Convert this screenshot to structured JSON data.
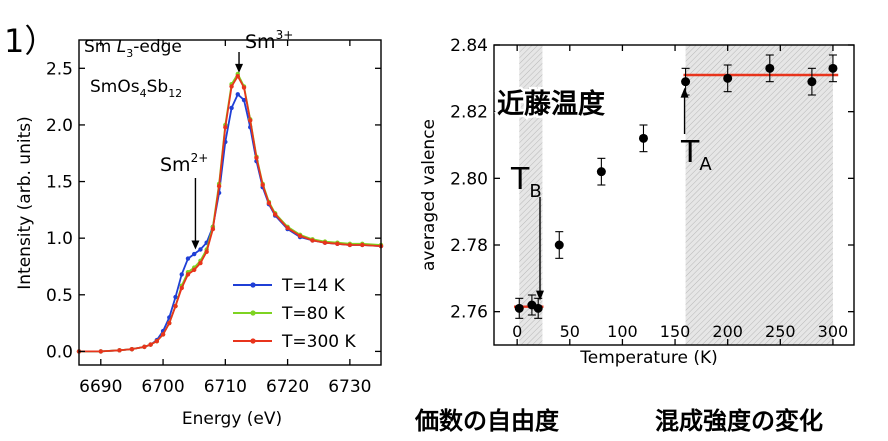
{
  "panel_number": "1）",
  "chart_data": [
    {
      "type": "line",
      "title": "Sm L3-edge",
      "title_parts": {
        "prefix": "Sm ",
        "L": "L",
        "sub": "3",
        "suffix": "-edge"
      },
      "sample": {
        "base": "SmOs",
        "s1": "4",
        "mid": "Sb",
        "s2": "12"
      },
      "xlabel": "Energy (eV)",
      "ylabel": "Intensity (arb. units)",
      "xlim": [
        6686.5,
        6735
      ],
      "ylim": [
        -0.12,
        2.75
      ],
      "xticks": [
        6690,
        6700,
        6710,
        6720,
        6730
      ],
      "yticks": [
        0.0,
        0.5,
        1.0,
        1.5,
        2.0,
        2.5
      ],
      "ytick_labels": [
        "0.0",
        "0.5",
        "1.0",
        "1.5",
        "2.0",
        "2.5"
      ],
      "annotations": [
        {
          "base": "Sm",
          "sup": "3+",
          "x": 6712.2,
          "y": 2.6,
          "arrow_to": 2.46
        },
        {
          "base": "Sm",
          "sup": "2+",
          "x": 6705.2,
          "y": 1.6,
          "arrow_to": 0.9
        }
      ],
      "series": [
        {
          "name": "T=14 K",
          "color": "#1f3fd6",
          "x": [
            6686.5,
            6690,
            6693,
            6695,
            6697,
            6698,
            6699,
            6700,
            6701,
            6702,
            6703,
            6704,
            6705,
            6706,
            6707,
            6708,
            6709,
            6710,
            6711,
            6712,
            6713,
            6714,
            6715,
            6716,
            6717,
            6718,
            6720,
            6722,
            6724,
            6726,
            6728,
            6730,
            6732,
            6735
          ],
          "y": [
            0.0,
            0.0,
            0.01,
            0.02,
            0.04,
            0.06,
            0.1,
            0.18,
            0.3,
            0.48,
            0.68,
            0.82,
            0.86,
            0.9,
            0.96,
            1.1,
            1.4,
            1.85,
            2.15,
            2.27,
            2.22,
            1.98,
            1.68,
            1.45,
            1.3,
            1.2,
            1.08,
            1.01,
            0.98,
            0.96,
            0.95,
            0.94,
            0.94,
            0.93
          ]
        },
        {
          "name": "T=80 K",
          "color": "#7ed321",
          "x": [
            6686.5,
            6690,
            6693,
            6695,
            6697,
            6698,
            6699,
            6700,
            6701,
            6702,
            6703,
            6704,
            6705,
            6706,
            6707,
            6708,
            6709,
            6710,
            6711,
            6712,
            6713,
            6714,
            6715,
            6716,
            6717,
            6718,
            6720,
            6722,
            6724,
            6726,
            6728,
            6730,
            6732,
            6735
          ],
          "y": [
            0.0,
            0.0,
            0.01,
            0.02,
            0.04,
            0.06,
            0.09,
            0.15,
            0.25,
            0.4,
            0.58,
            0.7,
            0.74,
            0.8,
            0.9,
            1.1,
            1.48,
            2.0,
            2.36,
            2.45,
            2.34,
            2.05,
            1.72,
            1.48,
            1.32,
            1.22,
            1.1,
            1.03,
            0.99,
            0.97,
            0.96,
            0.95,
            0.95,
            0.94
          ]
        },
        {
          "name": "T=300 K",
          "color": "#e8341c",
          "x": [
            6686.5,
            6690,
            6693,
            6695,
            6697,
            6698,
            6699,
            6700,
            6701,
            6702,
            6703,
            6704,
            6705,
            6706,
            6707,
            6708,
            6709,
            6710,
            6711,
            6712,
            6713,
            6714,
            6715,
            6716,
            6717,
            6718,
            6720,
            6722,
            6724,
            6726,
            6728,
            6730,
            6732,
            6735
          ],
          "y": [
            0.0,
            0.0,
            0.01,
            0.02,
            0.04,
            0.06,
            0.09,
            0.15,
            0.25,
            0.4,
            0.56,
            0.68,
            0.72,
            0.78,
            0.88,
            1.08,
            1.46,
            1.98,
            2.34,
            2.43,
            2.33,
            2.04,
            1.71,
            1.47,
            1.31,
            1.21,
            1.09,
            1.02,
            0.98,
            0.96,
            0.95,
            0.94,
            0.94,
            0.93
          ]
        }
      ]
    },
    {
      "type": "scatter",
      "xlabel": "Temperature (K)",
      "ylabel": "averaged valence",
      "xlim": [
        -22,
        320
      ],
      "ylim": [
        2.75,
        2.84
      ],
      "xticks": [
        0,
        50,
        100,
        150,
        200,
        250,
        300
      ],
      "yticks": [
        2.76,
        2.78,
        2.8,
        2.82,
        2.84
      ],
      "ytick_labels": [
        "2.76",
        "2.78",
        "2.80",
        "2.82",
        "2.84"
      ],
      "shaded_regions": [
        {
          "from": 2,
          "to": 24
        },
        {
          "from": 160,
          "to": 300
        }
      ],
      "hlines": [
        {
          "y": 2.7615,
          "from": -3,
          "to": 25,
          "color": "#e8341c"
        },
        {
          "y": 2.831,
          "from": 158,
          "to": 305,
          "color": "#e8341c"
        }
      ],
      "points": [
        {
          "x": 2,
          "y": 2.761,
          "err": 0.003
        },
        {
          "x": 14,
          "y": 2.762,
          "err": 0.003
        },
        {
          "x": 20,
          "y": 2.761,
          "err": 0.003
        },
        {
          "x": 40,
          "y": 2.78,
          "err": 0.004
        },
        {
          "x": 80,
          "y": 2.802,
          "err": 0.004
        },
        {
          "x": 120,
          "y": 2.812,
          "err": 0.004
        },
        {
          "x": 160,
          "y": 2.829,
          "err": 0.004
        },
        {
          "x": 200,
          "y": 2.83,
          "err": 0.004
        },
        {
          "x": 240,
          "y": 2.833,
          "err": 0.004
        },
        {
          "x": 280,
          "y": 2.829,
          "err": 0.004
        },
        {
          "x": 300,
          "y": 2.833,
          "err": 0.004
        }
      ],
      "annotations": {
        "kondo": "近藤温度",
        "tb": {
          "base": "T",
          "sub": "B"
        },
        "ta": {
          "base": "T",
          "sub": "A"
        }
      }
    }
  ],
  "captions": {
    "left": "価数の自由度",
    "right": "混成強度の変化"
  }
}
